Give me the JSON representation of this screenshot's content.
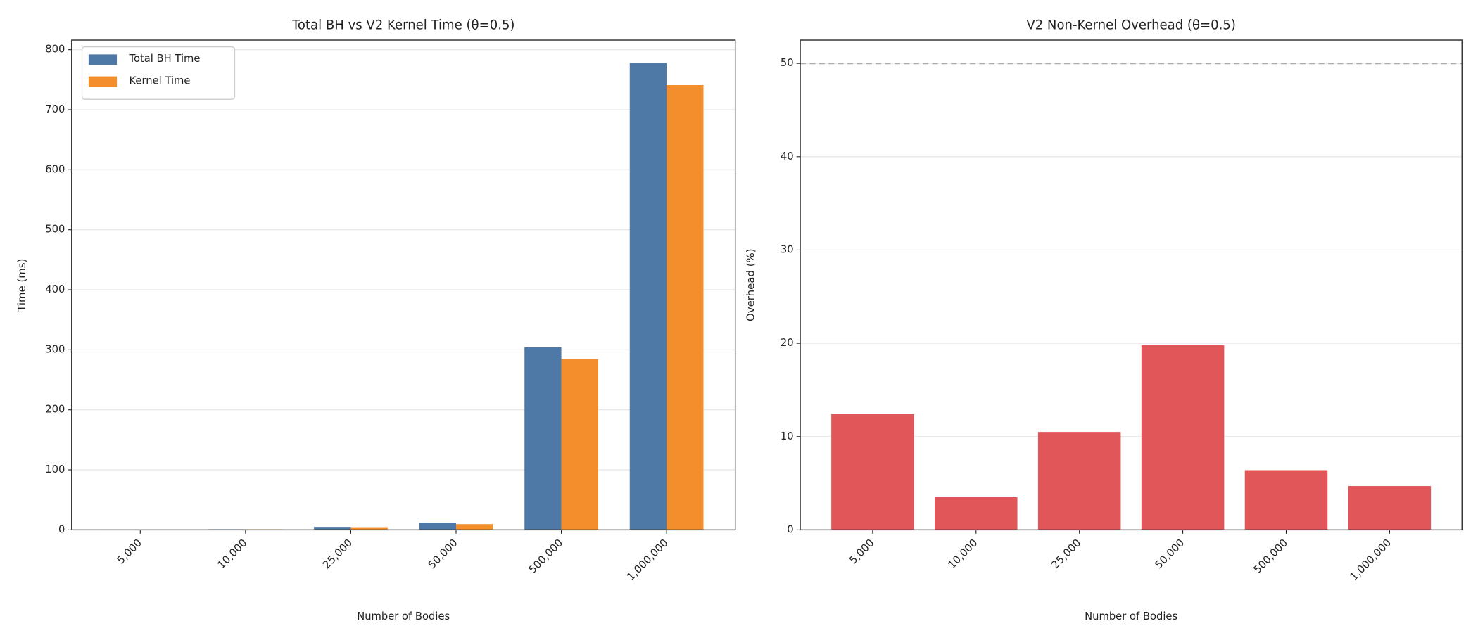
{
  "chart_data": [
    {
      "type": "bar",
      "title": "Total BH vs V2 Kernel Time (θ=0.5)",
      "x_label": "Number of Bodies",
      "y_label": "Time (ms)",
      "categories": [
        "5,000",
        "10,000",
        "25,000",
        "50,000",
        "500,000",
        "1,000,000"
      ],
      "series": [
        {
          "name": "Total BH Time",
          "color": "#4e79a7",
          "values": [
            0.5,
            1,
            5,
            12,
            304,
            778
          ]
        },
        {
          "name": "Kernel Time",
          "color": "#f28e2b",
          "values": [
            0.4,
            0.9,
            4.5,
            9.6,
            284,
            741
          ]
        }
      ],
      "ylim": [
        0,
        816
      ],
      "yticks": [
        0,
        100,
        200,
        300,
        400,
        500,
        600,
        700,
        800
      ],
      "grid": true,
      "legend": "upper left"
    },
    {
      "type": "bar",
      "title": "V2 Non-Kernel Overhead (θ=0.5)",
      "x_label": "Number of Bodies",
      "y_label": "Overhead (%)",
      "categories": [
        "5,000",
        "10,000",
        "25,000",
        "50,000",
        "500,000",
        "1,000,000"
      ],
      "values": [
        12.4,
        3.5,
        10.5,
        19.8,
        6.4,
        4.7
      ],
      "color": "#e15759",
      "reference_line": 50,
      "ylim": [
        0,
        52.5
      ],
      "yticks": [
        0,
        10,
        20,
        30,
        40,
        50
      ],
      "grid": true
    }
  ]
}
